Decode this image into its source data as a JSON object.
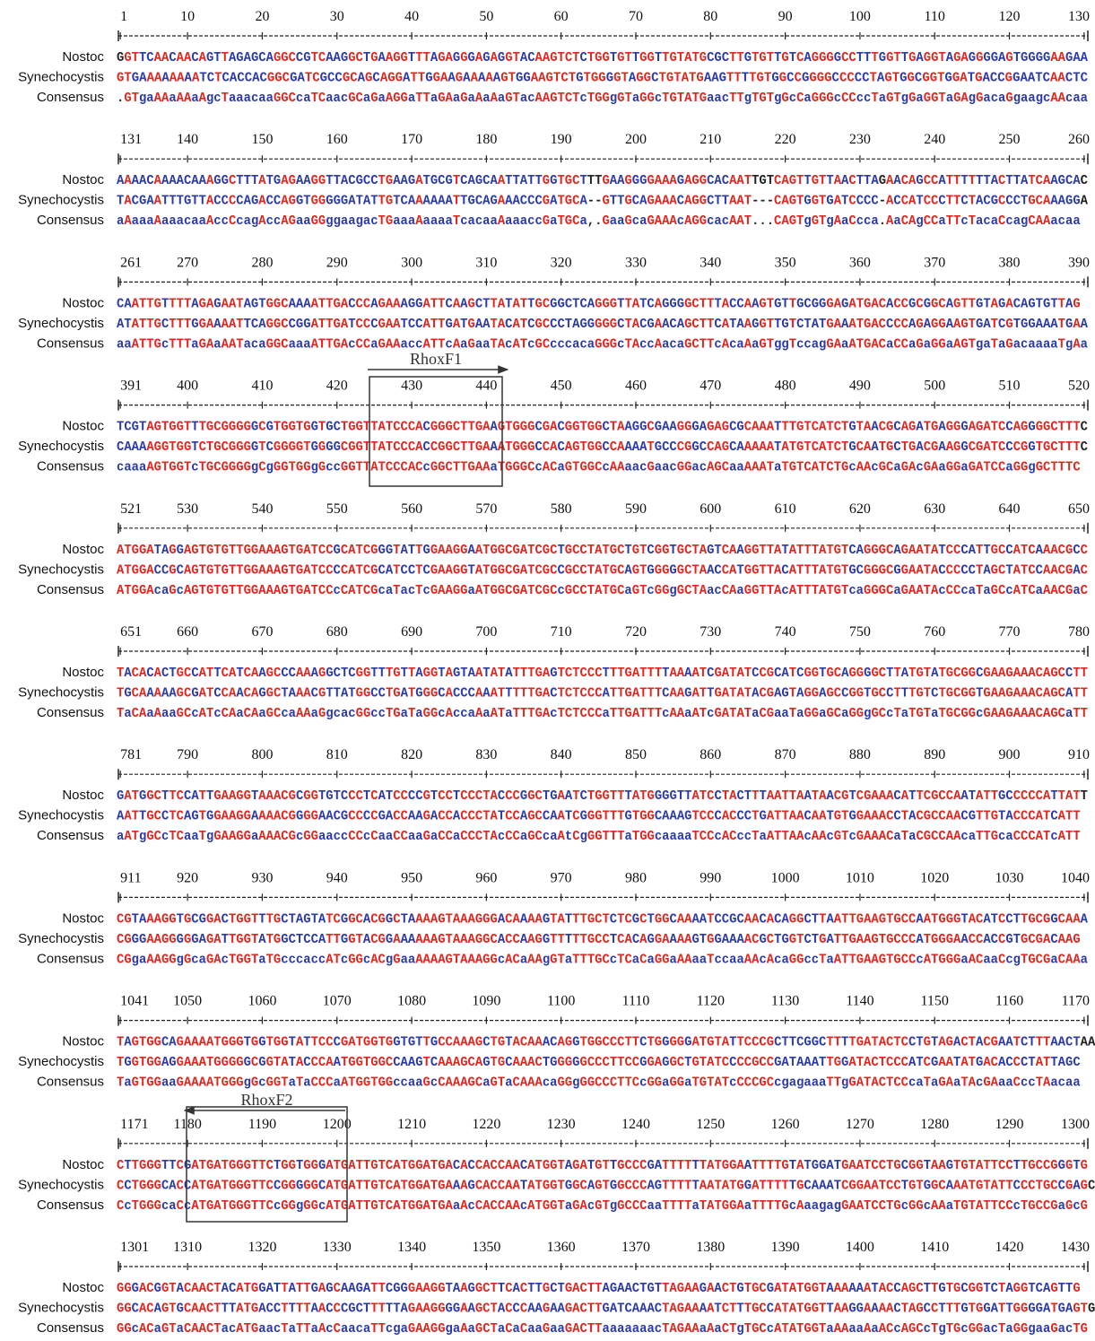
{
  "names": [
    "Nostoc",
    "Synechocystis",
    "Consensus"
  ],
  "annotations": [
    "RhoxF1",
    "RhoxF2"
  ],
  "blocks": [
    {
      "ticks": [
        1,
        10,
        20,
        30,
        40,
        50,
        60,
        70,
        80,
        90,
        100,
        110,
        120,
        130
      ],
      "sequences": [
        "GGTTCAACAACAGTTAGAGCAGGCCGTCAAGGCTGAAGGTTTAGAGGGAGAGGTACAAGTCTCTGGTGTTGGTTGTATGCGCTTGTGTTGTCAGGGGCCTTTGGTTGAGGTAGAGGGGAGTGGGGAAGAA",
        " GTGAAAAAAAATCTCACCACGGCGATCGCCGCAGCAGGATTGGAAGAAAAAGTGGAAGTCTGTGGGGTAGGCTGTATGAAGTTTTGTGGCCGGGGCCCCCTAGTGGCGGTGGATGACCGGAATCAACTC",
        ".GTgaAAaAAaAgcTaaacaaGGCcaTCaacGCaGaAGGaTTaGAaGaAaAaGTacAAGTCTcTGGgGTaGGcTGTATGaacTTgTGTgGcCaGGGcCCccTaGTgGaGGTaGAgGacaGgaagcAAcaa"
      ]
    },
    {
      "ticks": [
        131,
        140,
        150,
        160,
        170,
        180,
        190,
        200,
        210,
        220,
        230,
        240,
        250,
        260
      ],
      "sequences": [
        "AAAACAAAACAAAGGCTTTATGAGAAGGTTACGCCTGAAGATGCGTCAGCAATTATTGGTGCTTTGAAGGGGAAAGAGGCACAATTGTCAGTTGTTAACTTAGAACAGCCATTTTTTACTTATCAAGCAC",
        "TACGAATTTGTTACCCCAGACCAGGTGGGGGATATTGTCAAAAAATTGCAGAAACCCGATGCA--GTTGCAGAAACAGGCTTAAT---CAGTGGTGATCCCC-ACCATCCCTTCTACGCCCTGCAAAGGA",
        "aAaaaAaaacaaAccCcagAccAGaaGGggaagacTGaaaAaaaaTcacaaAaaaccGaTGCa,.GaaGcaGAAAcAGGcacAAT...CAGTgGTgAaCcca.AaCAgCCaTTcTacaCcagCAAacaa"
      ]
    },
    {
      "ticks": [
        261,
        270,
        280,
        290,
        300,
        310,
        320,
        330,
        340,
        350,
        360,
        370,
        380,
        390
      ],
      "sequences": [
        "CAATTGTTTTAGAGAATAGTGGCAAAATTGACCCAGAAAGGATTCAAGCTTATATTGCGGCTCAGGGTTATCAGGGGCTTTACCAAGTGTTGCGGGAGATGACACCGCGGCAGTTGTAGACAGTGTTAG",
        "ATATTGCTTTGGAAAATTCAGGCCGGATTGATCCCGAATCCATTGATGAATACATCGCCCTAGGGGGCTACGAACAGCTTCATAAGGTTGTCTATGAAATGACCCCAGAGGAAGTGATCGTGGAAATGAA",
        "aaATTGcTTTaGAaAATacaGGCaaaATTGAcCCaGAAaccATTcAaGaaTAcATcGCcccacaGGGcTAccAacaGCTTcAcaAaGTggTccagGAaATGACaCCaGaGGaAGTgaTaGacaaaaTgAa"
      ]
    },
    {
      "ticks": [
        391,
        400,
        410,
        420,
        430,
        440,
        450,
        460,
        470,
        480,
        490,
        500,
        510,
        520
      ],
      "sequences": [
        "TCGTAGTGGTTTGCGGGGGCGTGGTGGTGCTGGTTATCCCACGGGCTTGAAGTGGGCGACGGTGGCTAAGGCGAAGGGAGAGCGCAAATTTGTCATCTGTAACGCAGATGAGGGAGATCCAGGGGCTTTC",
        "CAAAAGGTGGTCTGCGGGGTCGGGGTGGGGCGGTTATCCCACCGGCTTGAAATGGGCCACAGTGGCCAAAATGCCCGGCCAGCAAAAATATGTCATCTGCAATGCTGACGAAGGCGATCCCGGTGCTTTC",
        "caaaAGTGGTcTGCGGGGgCgGGTGGgGccGGTTATCCCACcGGCTTGAAaTGGGCcACaGTGGCcAAaacGaacGGacAGCaaAAATaTGTCATCTGcAAcGCaGAcGAaGGaGATCCaGGgGCTTTC"
      ]
    },
    {
      "ticks": [
        521,
        530,
        540,
        550,
        560,
        570,
        580,
        590,
        600,
        610,
        620,
        630,
        640,
        650
      ],
      "sequences": [
        "ATGGATAGGAGTGTGTTGGAAAGTGATCCGCATCGGGTATTGGAAGGAATGGCGATCGCTGCCTATGCTGTCGGTGCTAGTCAAGGTTATATTTATGTCAGGGCAGAATATCCCATTGCCATCAAACGCC",
        "ATGGACCGCAGTGTGTTGGAAAGTGATCCCCATCGCATCCTCGAAGGTATGGCGATCGCCGCCTATGCAGTGGGGGCTAACCATGGTTACATTTATGTGCGGGCGGAATACCCCCTAGCTATCCAACGAC",
        "ATGGAcaGcAGTGTGTTGGAAAGTGATCCcCATCGcaTacTcGAAGGaATGGCGATCGCcGCCTATGCaGTcGGgGCTAacCAaGGTTAcATTTATGTcaGGGCaGAATAcCCcaTaGCcATCaAACGaC"
      ]
    },
    {
      "ticks": [
        651,
        660,
        670,
        680,
        690,
        700,
        710,
        720,
        730,
        740,
        750,
        760,
        770,
        780
      ],
      "sequences": [
        "TACACACTGCCATTCATCAAGCCCAAAGGCTCGGTTTGTTAGGTAGTAATATATTTGAGTCTCCCTTTGATTTTAAAATCGATATCCGCATCGGTGCAGGGGCTTATGTATGCGGCGAAGAAACAGCCTT",
        "TGCAAAAAGCGATCCAACAGGCTAAACGTTATGGCCTGATGGGCACCCAAATTTTTGACTCTCCCATTGATTTCAAGATTGATATACGAGTAGGAGCCGGTGCCTTTGTCTGCGGTGAAGAAACAGCATT",
        "TaCAaAaaGCcATcCAaCAaGCcaAAaGgcacGGccTGaTaGGcAccaAaATaTTTGAcTCTCCCaTTGATTTcAAaATcGATATaCGaaTaGGaGCaGGgGCcTaTGTaTGCGGcGAAGAAACAGCaTT"
      ]
    },
    {
      "ticks": [
        781,
        790,
        800,
        810,
        820,
        830,
        840,
        850,
        860,
        870,
        880,
        890,
        900,
        910
      ],
      "sequences": [
        "GATGGCTTCCATTGAAGGTAAACGCGGTGTCCCTCATCCCCGTCCTCCCTACCCGGCTGAATCTGGTTTATGGGGTTATCCTACTTTAATTAATAACGTCGAAACATTCGCCAATATTGCCCCCATTATT",
        "AATTGCCTCAGTGGAAGGAAAACGGGGAACGCCCCGACCAAGACCACCCTATCCAGCCAATCGGGTTTGTGGCAAAGTCCCACCCTGATTAACAATGTGGAAACCTACGCCAACGTTGTACCCATCATT",
        "aATgGCcTCaaTgGAAGGaAAACGcGGaaccCCcCaaCCaaGaCCaCCCTAcCCaGCcaAtCgGGTTTaTGGcaaaaTCCcACccTaATTAAcAAcGTcGAAACaTaCGCCAAcaTTGcaCCCATcATT"
      ]
    },
    {
      "ticks": [
        911,
        920,
        930,
        940,
        950,
        960,
        970,
        980,
        990,
        1000,
        1010,
        1020,
        1030,
        1040
      ],
      "sequences": [
        "CGTAAAGGTGCGGACTGGTTTGCTAGTATCGGCACGGCTAAAAGTAAAGGGACAAAAGTATTTGCTCTCGCTGGCAAAATCCGCAACACAGGCTTAATTGAAGTGCCAATGGGTACATCCTTGCGGCAAA",
        "CGGGAAGGGGGAGATTGGTATGGCTCCATTGGTACGGAAAAAAGTAAAGGCACCAAGGTTTTTGCCTCACAGGAAAAGTGGAAAACGCTGGTCTGATTGAAGTGCCCATGGGAACCACCGTGCGACAAG",
        "CGgaAAGGgGcaGAcTGGTaTGcccaccATcGGcACgGaaAAAAGTAAAGGcACaAAgGTaTTTGCcTCaCaGGaAAaaTccaaAAcAcaGGccTaATTGAAGTGCCcATGGGaACaaCcgTGCGaCAAa"
      ]
    },
    {
      "ticks": [
        1041,
        1050,
        1060,
        1070,
        1080,
        1090,
        1100,
        1110,
        1120,
        1130,
        1140,
        1150,
        1160,
        1170
      ],
      "sequences": [
        "TAGTGGCAGAAAATGGGTGGTGGTATTCCCGATGGTGGTGTTGCCAAAGCTGTACAAACAGGTGGCCCTTCTGGGGGATGTATTCCCGCTTCGGCTTTTGATACTCCTGTAGACTACGAATCTTTAACTAA",
        "TGGTGGAGGAAATGGGGGCGGTATACCCAATGGTGGCCAAGTCAAAGCAGTGCAAACTGGGGGCCCTTCCGGAGGCTGTATCCCCGCCGATAAATTGGATACTCCCATCGAATATGACACCCTATTAGC",
        "TaGTGGaaGAAAATGGGgGcGGTaTaCCCaATGGTGGccaaGcCAAAGCaGTaCAAAcaGGgGGCCCTTCcGGaGGaTGTATcCCCGCcgagaaaTTgGATACTCCcaTaGAaTAcGAaaCccTAacaa"
      ]
    },
    {
      "ticks": [
        1171,
        1180,
        1190,
        1200,
        1210,
        1220,
        1230,
        1240,
        1250,
        1260,
        1270,
        1280,
        1290,
        1300
      ],
      "sequences": [
        "CTTGGGTTCGATGATGGGTTCTGGTGGGATGATTGTCATGGATGACACCACCAACATGGTAGATGTTGCCCGATTTTTTATGGAATTTTGTATGGATGAATCCTGCGGTAAGTGTATTCCTTGCCGGGTG",
        "CCTGGGCACCATGATGGGTTCCGGGGGCATGATTGTCATGGATGAAAGCACCAATATGGTGGCAGTGGCCCAGTTTTTAATATGGATTTTTGCAAATCGGAATCCTGTGGCAAATGTATTCCCTGCCGAGCG",
        "CcTGGGcaCcATGATGGGTTCcGGgGGcATGATTGTCATGGATGAaAcCACCAAcATGGTaGAcGTgGCCCaaTTTTaTATGGAaTTTTGcAaagagGAATCCTGcGGcAAaTGTATTCCcTGCCGaGcG"
      ]
    },
    {
      "ticks": [
        1301,
        1310,
        1320,
        1330,
        1340,
        1350,
        1360,
        1370,
        1380,
        1390,
        1400,
        1410,
        1420,
        1430
      ],
      "sequences": [
        "GGGACGGTACAACTACATGGATTATTGAGCAAGATTCGGGAAGGTAAGGCTTCACTTGCTGACTTAGAACTGTTAGAAGAACTGTGCGATATGGTAAAAAATACCAGCTTGTGCGGTCTAGGTCAGTTG",
        "GGCACAGTGCAACTTTATGACCTTTTAACCCGCTTTTTAGAAGGGGAAGCTACCCAAGAAGACTTGATCAAACTAGAAAATCTTTGCCATATGGTTAAGGAAAACTAGCCTTTGTGGATTGGGGATGAGTG",
        "GGcACaGTaCAACTacATGaacTaTTaAcCaacaTTcgaGAAGGgaAaGCTaCaCaaGaaGACTTaaaaaaacTAGAAaAaCTgTGCcATATGGTaAAaaAaACcAGCcTgTGcGGacTaGGgaaGacTG"
      ]
    }
  ]
}
